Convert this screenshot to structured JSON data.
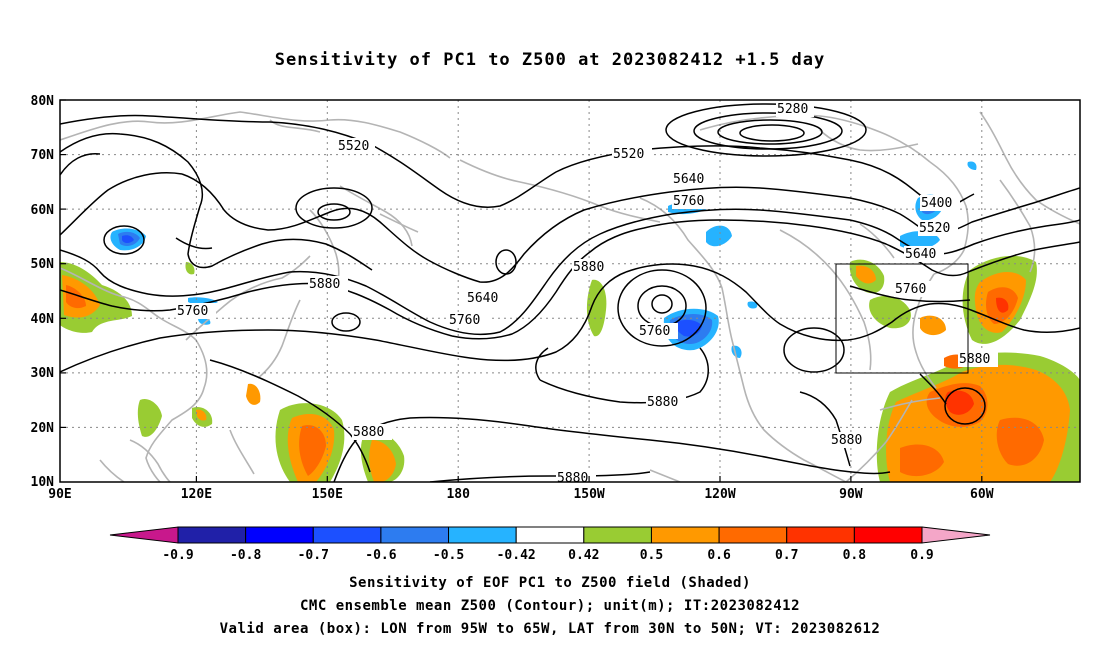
{
  "title": "Sensitivity of PC1 to Z500 at 2023082412 +1.5 day",
  "axes": {
    "lat_labels": [
      "80N",
      "70N",
      "60N",
      "50N",
      "40N",
      "30N",
      "20N",
      "10N"
    ],
    "lon_labels": [
      "90E",
      "120E",
      "150E",
      "180",
      "150W",
      "120W",
      "90W",
      "60W"
    ]
  },
  "contour_labels": {
    "c5280": "5280",
    "c5400": "5400",
    "c5520a": "5520",
    "c5520b": "5520",
    "c5520c": "5520",
    "c5640a": "5640",
    "c5640b": "5640",
    "c5640c": "5640",
    "c5760a": "5760",
    "c5760b": "5760",
    "c5760c": "5760",
    "c5760d": "5760",
    "c5760e": "5760",
    "c5880a": "5880",
    "c5880b": "5880",
    "c5880c": "5880",
    "c5880d": "5880",
    "c5880e": "5880",
    "c5880f": "5880",
    "c5880g": "5880"
  },
  "colorbar": {
    "labels": [
      "-0.9",
      "-0.8",
      "-0.7",
      "-0.6",
      "-0.5",
      "-0.42",
      "0.42",
      "0.5",
      "0.6",
      "0.7",
      "0.8",
      "0.9"
    ],
    "colors": [
      "#2020a8",
      "#0000ff",
      "#1c50ff",
      "#2d7cf0",
      "#26b3ff",
      "#ffffff",
      "#99cc33",
      "#ff9900",
      "#ff6a00",
      "#ff3300",
      "#ff0000"
    ],
    "low_color": "#c8188c",
    "high_color": "#f4a6c8"
  },
  "captions": {
    "line1": "Sensitivity of EOF PC1 to Z500 field (Shaded)",
    "line2": "CMC ensemble mean Z500 (Contour); unit(m); IT:2023082412",
    "line3": "Valid area (box): LON from 95W to 65W, LAT from 30N to 50N; VT: 2023082612"
  },
  "colors": {
    "contour": "#000000",
    "coast": "#b4b4b4",
    "grid": "#888888"
  }
}
